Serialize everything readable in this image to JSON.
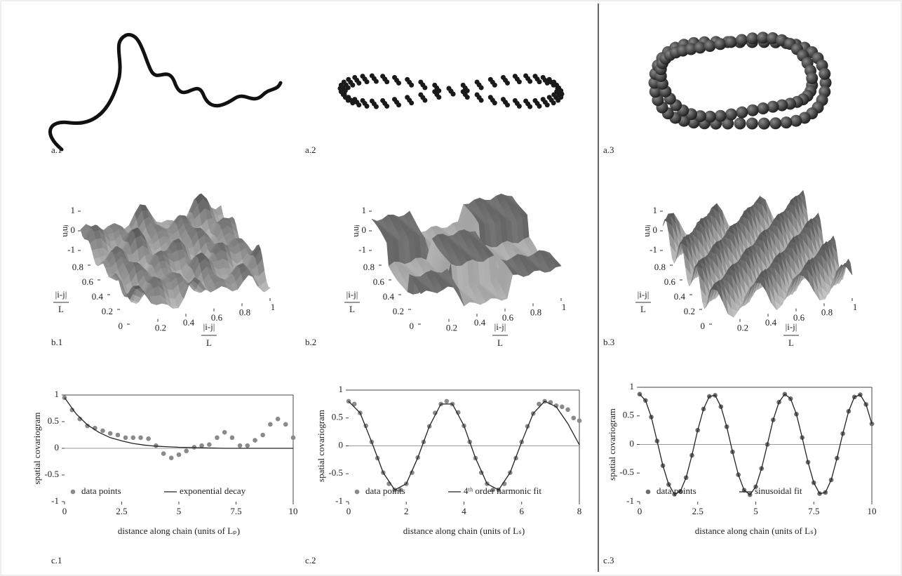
{
  "images": [
    {
      "label": "a.1"
    },
    {
      "label": "a.2"
    },
    {
      "label": "a.3"
    }
  ],
  "chart_data": [
    {
      "type": "surface",
      "label": "b.1",
      "zlabel": "uᵢuⱼ",
      "ylabel": "|i-j|",
      "ylabel_denominator": "L",
      "xlabel": "|i-j|",
      "xlabel_denominator": "L",
      "xticks": [
        0.2,
        0.4,
        0.6,
        0.8,
        1
      ],
      "yticks": [
        0,
        0.2,
        0.4,
        0.6,
        0.8
      ],
      "zticks": [
        -1,
        0,
        1
      ]
    },
    {
      "type": "surface",
      "label": "b.2",
      "zlabel": "uᵢuⱼ",
      "ylabel": "|i-j|",
      "ylabel_denominator": "L",
      "xlabel": "|i-j|",
      "xlabel_denominator": "L",
      "xticks": [
        0.2,
        0.4,
        0.6,
        0.8,
        1
      ],
      "yticks": [
        0,
        0.2,
        0.4,
        0.6,
        0.8
      ],
      "zticks": [
        -1,
        0,
        1
      ]
    },
    {
      "type": "surface",
      "label": "b.3",
      "zlabel": "uᵢuⱼ",
      "ylabel": "|i-j|",
      "ylabel_denominator": "L",
      "xlabel": "|i-j|",
      "xlabel_denominator": "L",
      "xticks": [
        0.2,
        0.4,
        0.6,
        0.8,
        1
      ],
      "yticks": [
        0,
        0.2,
        0.4,
        0.6,
        0.8
      ],
      "zticks": [
        -1,
        0,
        1
      ]
    },
    {
      "type": "line",
      "label": "c.1",
      "xlabel": "distance along chain (units of Lₚ)",
      "ylabel": "spatial covariogram",
      "xlim": [
        0,
        10
      ],
      "ylim": [
        -1,
        1
      ],
      "xticks": [
        0,
        2.5,
        5,
        7.5,
        10
      ],
      "yticks": [
        -1,
        -0.5,
        0,
        0.5,
        1
      ],
      "series": [
        {
          "name": "data points",
          "marker": "circle",
          "color": "#8a8a8a",
          "x": [
            0,
            0.33,
            0.67,
            1,
            1.33,
            1.67,
            2,
            2.33,
            2.67,
            3,
            3.33,
            3.67,
            4,
            4.33,
            4.67,
            5,
            5.33,
            5.67,
            6,
            6.33,
            6.67,
            7,
            7.33,
            7.67,
            8,
            8.33,
            8.67,
            9,
            9.33,
            9.67,
            10
          ],
          "values": [
            0.95,
            0.72,
            0.55,
            0.42,
            0.38,
            0.33,
            0.28,
            0.25,
            0.2,
            0.2,
            0.2,
            0.18,
            0.05,
            -0.1,
            -0.18,
            -0.12,
            -0.05,
            0.02,
            0.05,
            0.07,
            0.2,
            0.3,
            0.2,
            0.05,
            0.05,
            0.15,
            0.25,
            0.45,
            0.55,
            0.45,
            0.2
          ]
        },
        {
          "name": "exponential decay",
          "marker": "none",
          "color": "#222222",
          "x": [
            0,
            0.5,
            1,
            1.5,
            2,
            2.5,
            3,
            3.5,
            4,
            4.5,
            5,
            6,
            7,
            8,
            9,
            10
          ],
          "values": [
            0.95,
            0.65,
            0.44,
            0.3,
            0.2,
            0.14,
            0.09,
            0.06,
            0.04,
            0.03,
            0.02,
            0.01,
            0,
            0,
            0,
            0
          ]
        }
      ]
    },
    {
      "type": "line",
      "label": "c.2",
      "xlabel": "distance along chain (units of Lₛ)",
      "ylabel": "spatial covariogram",
      "xlim": [
        0,
        8
      ],
      "ylim": [
        -1,
        1
      ],
      "xticks": [
        0,
        2,
        4,
        6,
        8
      ],
      "yticks": [
        -1,
        -0.5,
        0,
        0.5,
        1
      ],
      "series": [
        {
          "name": "data points",
          "marker": "circle",
          "color": "#8a8a8a",
          "x": [
            0,
            0.2,
            0.4,
            0.6,
            0.8,
            1,
            1.2,
            1.4,
            1.6,
            1.8,
            2,
            2.2,
            2.4,
            2.6,
            2.8,
            3,
            3.2,
            3.4,
            3.6,
            3.8,
            4,
            4.2,
            4.4,
            4.6,
            4.8,
            5,
            5.2,
            5.4,
            5.6,
            5.8,
            6,
            6.2,
            6.4,
            6.6,
            6.8,
            7,
            7.2,
            7.4,
            7.6,
            7.8,
            8
          ],
          "values": [
            0.8,
            0.75,
            0.59,
            0.36,
            0.07,
            -0.22,
            -0.48,
            -0.68,
            -0.79,
            -0.79,
            -0.68,
            -0.48,
            -0.21,
            0.07,
            0.35,
            0.59,
            0.75,
            0.8,
            0.75,
            0.6,
            0.36,
            0.07,
            -0.22,
            -0.48,
            -0.68,
            -0.79,
            -0.79,
            -0.68,
            -0.48,
            -0.22,
            0.07,
            0.35,
            0.58,
            0.75,
            0.8,
            0.78,
            0.72,
            0.7,
            0.65,
            0.5,
            0.45
          ]
        },
        {
          "name": "4ᵗʰ order harmonic fit",
          "marker": "none",
          "color": "#222222",
          "x": [
            0,
            0.4,
            0.8,
            1.2,
            1.6,
            2,
            2.4,
            2.8,
            3.2,
            3.6,
            4,
            4.4,
            4.8,
            5.2,
            5.6,
            6,
            6.4,
            6.8,
            7.2,
            7.6,
            8
          ],
          "values": [
            0.8,
            0.59,
            0.07,
            -0.48,
            -0.79,
            -0.68,
            -0.21,
            0.35,
            0.75,
            0.75,
            0.36,
            -0.22,
            -0.68,
            -0.79,
            -0.48,
            0.07,
            0.58,
            0.8,
            0.7,
            0.4,
            0.02
          ]
        }
      ]
    },
    {
      "type": "line",
      "label": "c.3",
      "xlabel": "distance along chain (units of Lₛ)",
      "ylabel": "spatial covariogram",
      "xlim": [
        0,
        10
      ],
      "ylim": [
        -1,
        1
      ],
      "xticks": [
        0,
        2.5,
        5,
        7.5,
        10
      ],
      "yticks": [
        -1,
        -0.5,
        0,
        0.5,
        1
      ],
      "series": [
        {
          "name": "data points",
          "marker": "circle",
          "color": "#6e6e6e",
          "x": [
            0,
            0.25,
            0.5,
            0.75,
            1,
            1.25,
            1.5,
            1.75,
            2,
            2.25,
            2.5,
            2.75,
            3,
            3.25,
            3.5,
            3.75,
            4,
            4.25,
            4.5,
            4.75,
            5,
            5.25,
            5.5,
            5.75,
            6,
            6.25,
            6.5,
            6.75,
            7,
            7.25,
            7.5,
            7.75,
            8,
            8.25,
            8.5,
            8.75,
            9,
            9.25,
            9.5,
            9.75,
            10
          ],
          "values": [
            0.88,
            0.77,
            0.48,
            0.06,
            -0.37,
            -0.7,
            -0.87,
            -0.82,
            -0.58,
            -0.19,
            0.25,
            0.62,
            0.84,
            0.86,
            0.66,
            0.31,
            -0.13,
            -0.53,
            -0.8,
            -0.88,
            -0.74,
            -0.42,
            0,
            0.43,
            0.74,
            0.88,
            0.8,
            0.53,
            0.12,
            -0.31,
            -0.67,
            -0.86,
            -0.84,
            -0.62,
            -0.24,
            0.19,
            0.58,
            0.83,
            0.87,
            0.7,
            0.36
          ]
        },
        {
          "name": "sinusoidal fit",
          "marker": "none",
          "color": "#222222",
          "x": [
            0,
            0.25,
            0.5,
            0.75,
            1,
            1.25,
            1.5,
            1.75,
            2,
            2.25,
            2.5,
            2.75,
            3,
            3.25,
            3.5,
            3.75,
            4,
            4.25,
            4.5,
            4.75,
            5,
            5.25,
            5.5,
            5.75,
            6,
            6.25,
            6.5,
            6.75,
            7,
            7.25,
            7.5,
            7.75,
            8,
            8.25,
            8.5,
            8.75,
            9,
            9.25,
            9.5,
            9.75,
            10
          ],
          "values": [
            0.88,
            0.77,
            0.48,
            0.06,
            -0.37,
            -0.7,
            -0.87,
            -0.82,
            -0.58,
            -0.19,
            0.25,
            0.62,
            0.84,
            0.86,
            0.66,
            0.31,
            -0.13,
            -0.53,
            -0.8,
            -0.88,
            -0.74,
            -0.42,
            0,
            0.43,
            0.74,
            0.88,
            0.8,
            0.53,
            0.12,
            -0.31,
            -0.67,
            -0.86,
            -0.84,
            -0.62,
            -0.24,
            0.19,
            0.58,
            0.83,
            0.87,
            0.7,
            0.36
          ]
        }
      ]
    }
  ]
}
